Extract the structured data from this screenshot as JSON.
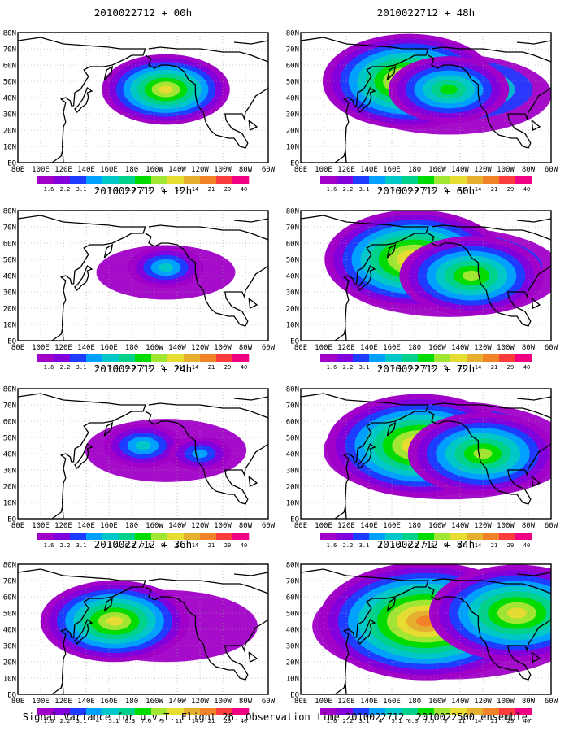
{
  "figure": {
    "caption": "Signal Variance for u,v,T. Flight 26. Observation time 2010022712. 2010022500 ensemble."
  },
  "map": {
    "lat_labels": [
      "EQ",
      "10N",
      "20N",
      "30N",
      "40N",
      "50N",
      "60N",
      "70N",
      "80N"
    ],
    "lon_labels": [
      "80E",
      "100E",
      "120E",
      "140E",
      "160E",
      "180",
      "160W",
      "140W",
      "120W",
      "100W",
      "80W",
      "60W"
    ]
  },
  "colorbar": {
    "levels": [
      "1.6",
      "2.2",
      "3.1",
      "4",
      "5.1",
      "6.3",
      "7.5",
      "9",
      "11",
      "14",
      "21",
      "29",
      "40"
    ],
    "colors": [
      "#a000c8",
      "#8200dc",
      "#1e3cff",
      "#00a0ff",
      "#00c8c8",
      "#00d28c",
      "#00dc00",
      "#a0e632",
      "#e6dc32",
      "#e6af2d",
      "#f08228",
      "#fa3c3c",
      "#f00082"
    ]
  },
  "chart_data": [
    {
      "type": "heatmap",
      "title": "2010022712 + 00h",
      "lead_hours": 0,
      "max_level": "11",
      "xlim": [
        "80E",
        "60W"
      ],
      "ylim": [
        "EQ",
        "80N"
      ],
      "hotspots": [
        {
          "lon": "160W",
          "lat": "45N",
          "level": "7.5"
        },
        {
          "lon": "150W",
          "lat": "45N",
          "level": "11"
        }
      ]
    },
    {
      "type": "heatmap",
      "title": "2010022712 + 12h",
      "lead_hours": 12,
      "max_level": "5.1",
      "xlim": [
        "80E",
        "60W"
      ],
      "ylim": [
        "EQ",
        "80N"
      ],
      "hotspots": [
        {
          "lon": "150W",
          "lat": "45N",
          "level": "5.1"
        }
      ]
    },
    {
      "type": "heatmap",
      "title": "2010022712 + 24h",
      "lead_hours": 24,
      "max_level": "5.1",
      "xlim": [
        "80E",
        "60W"
      ],
      "ylim": [
        "EQ",
        "80N"
      ],
      "hotspots": [
        {
          "lon": "170W",
          "lat": "45N",
          "level": "5.1"
        },
        {
          "lon": "120W",
          "lat": "40N",
          "level": "4"
        }
      ]
    },
    {
      "type": "heatmap",
      "title": "2010022712 + 36h",
      "lead_hours": 36,
      "max_level": "11",
      "xlim": [
        "80E",
        "60W"
      ],
      "ylim": [
        "EQ",
        "80N"
      ],
      "hotspots": [
        {
          "lon": "165E",
          "lat": "45N",
          "level": "11"
        }
      ]
    },
    {
      "type": "heatmap",
      "title": "2010022712 + 48h",
      "lead_hours": 48,
      "max_level": "14",
      "xlim": [
        "80E",
        "60W"
      ],
      "ylim": [
        "EQ",
        "80N"
      ],
      "hotspots": [
        {
          "lon": "175E",
          "lat": "50N",
          "level": "14"
        },
        {
          "lon": "150W",
          "lat": "45N",
          "level": "7.5"
        }
      ]
    },
    {
      "type": "heatmap",
      "title": "2010022712 + 60h",
      "lead_hours": 60,
      "max_level": "14",
      "xlim": [
        "80E",
        "60W"
      ],
      "ylim": [
        "EQ",
        "80N"
      ],
      "hotspots": [
        {
          "lon": "180",
          "lat": "50N",
          "level": "14"
        },
        {
          "lon": "130W",
          "lat": "40N",
          "level": "9"
        }
      ]
    },
    {
      "type": "heatmap",
      "title": "2010022712 + 72h",
      "lead_hours": 72,
      "max_level": "14",
      "xlim": [
        "80E",
        "60W"
      ],
      "ylim": [
        "EQ",
        "80N"
      ],
      "hotspots": [
        {
          "lon": "175W",
          "lat": "45N",
          "level": "14"
        },
        {
          "lon": "120W",
          "lat": "40N",
          "level": "9"
        }
      ]
    },
    {
      "type": "heatmap",
      "title": "2010022712 + 84h",
      "lead_hours": 84,
      "max_level": "21",
      "xlim": [
        "80E",
        "60W"
      ],
      "ylim": [
        "EQ",
        "80N"
      ],
      "hotspots": [
        {
          "lon": "170W",
          "lat": "45N",
          "level": "21"
        },
        {
          "lon": "90W",
          "lat": "50N",
          "level": "11"
        }
      ]
    }
  ]
}
